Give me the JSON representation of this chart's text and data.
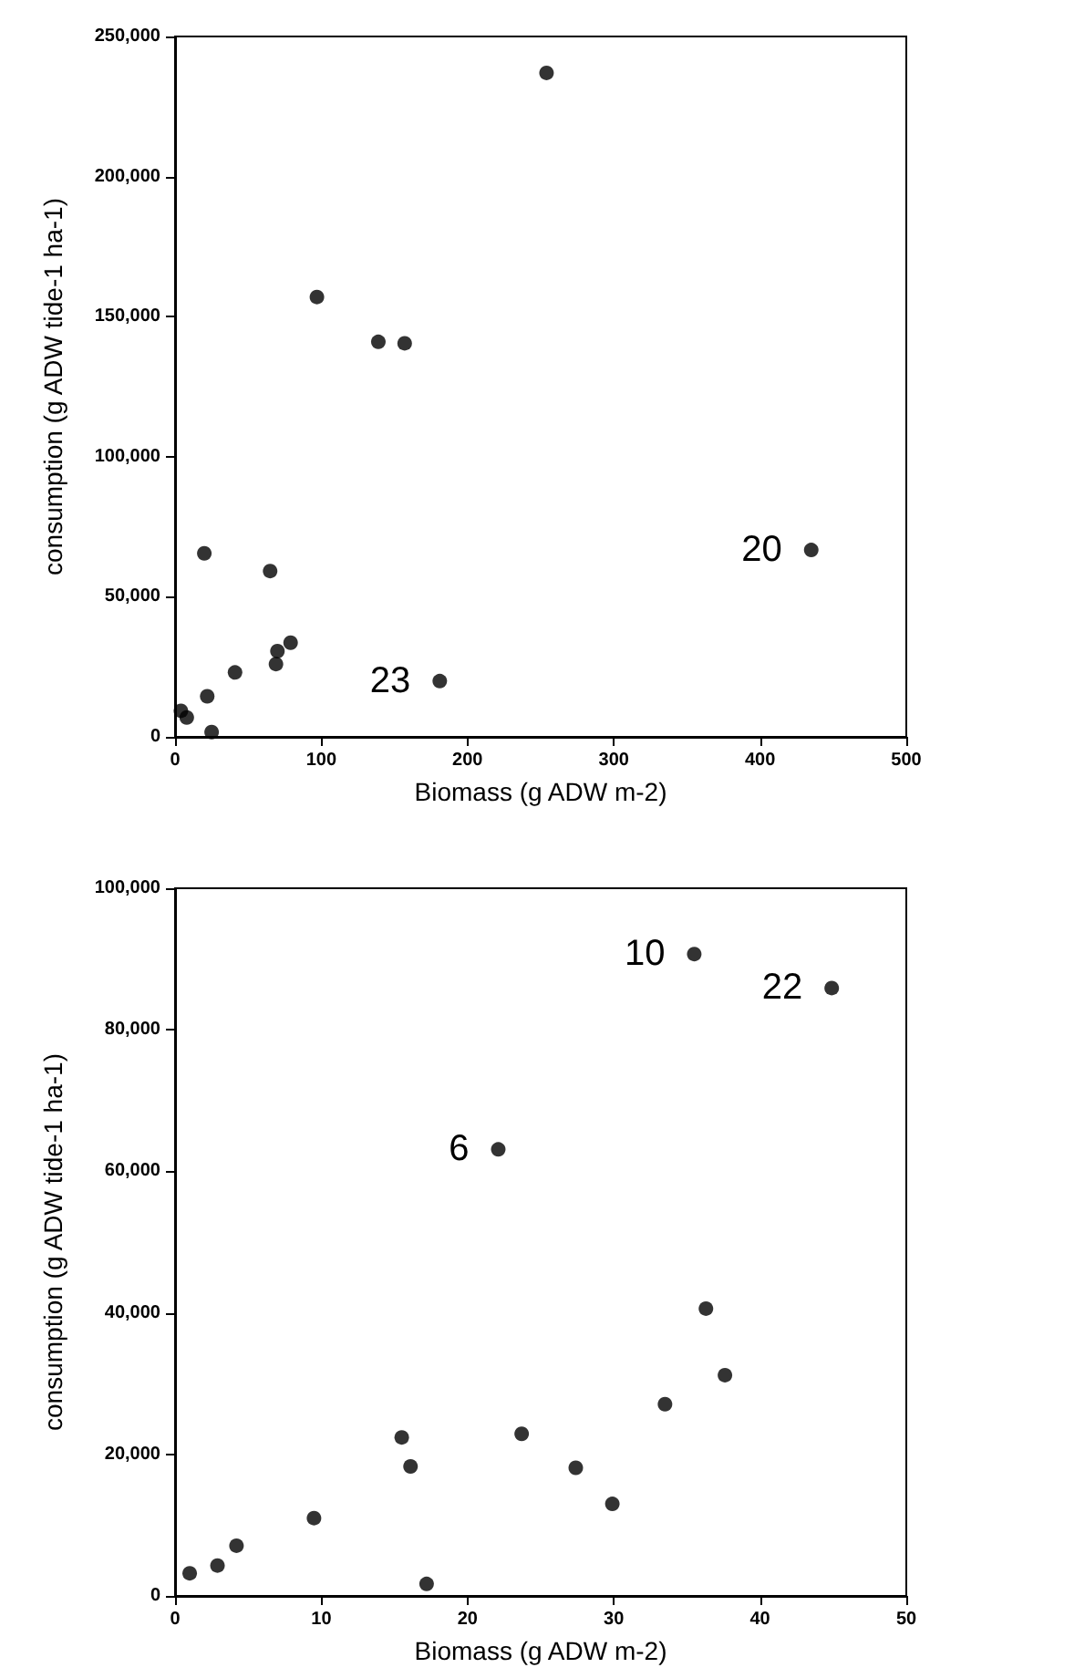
{
  "chart_data": [
    {
      "type": "scatter",
      "xlabel": "Biomass (g ADW m-2)",
      "ylabel": "consumption (g ADW tide-1 ha-1)",
      "marker": "circle",
      "grid": false,
      "xlim": [
        0,
        500
      ],
      "xticks": [
        0,
        100,
        200,
        300,
        400,
        500
      ],
      "ylim": [
        0,
        250000
      ],
      "yticks": [
        {
          "value": 0,
          "label": "0"
        },
        {
          "value": 50000,
          "label": "50,000"
        },
        {
          "value": 100000,
          "label": "100,000"
        },
        {
          "value": 150000,
          "label": "150,000"
        },
        {
          "value": 200000,
          "label": "200,000"
        },
        {
          "value": 250000,
          "label": "250,000"
        }
      ],
      "series": [
        {
          "color": "#000000",
          "x": [
            4,
            8,
            22,
            25,
            41,
            69,
            70,
            79,
            20,
            65,
            97,
            139,
            157,
            254,
            181,
            435
          ],
          "values": [
            9300,
            6900,
            14500,
            1700,
            23000,
            26000,
            30600,
            33600,
            65500,
            59200,
            157000,
            141000,
            140500,
            237000,
            19900,
            66700
          ]
        }
      ],
      "annotations": [
        {
          "text": "23",
          "x": 181,
          "y": 19900
        },
        {
          "text": "20",
          "x": 435,
          "y": 66700
        }
      ]
    },
    {
      "type": "scatter",
      "xlabel": "Biomass (g ADW m-2)",
      "ylabel": "consumption (g ADW tide-1 ha-1)",
      "marker": "circle",
      "grid": false,
      "xlim": [
        0,
        50
      ],
      "xticks": [
        0,
        10,
        20,
        30,
        40,
        50
      ],
      "ylim": [
        0,
        100000
      ],
      "yticks": [
        {
          "value": 0,
          "label": "0"
        },
        {
          "value": 20000,
          "label": "20,000"
        },
        {
          "value": 40000,
          "label": "40,000"
        },
        {
          "value": 60000,
          "label": "60,000"
        },
        {
          "value": 80000,
          "label": "80,000"
        },
        {
          "value": 100000,
          "label": "100,000"
        }
      ],
      "series": [
        {
          "color": "#000000",
          "x": [
            1.0,
            2.9,
            4.2,
            9.5,
            15.5,
            16.1,
            17.2,
            22.1,
            23.7,
            27.4,
            29.9,
            33.5,
            35.5,
            36.3,
            37.6,
            44.9
          ],
          "values": [
            3200,
            4300,
            7100,
            11000,
            22400,
            18300,
            1700,
            63100,
            22900,
            18100,
            13000,
            27100,
            90700,
            40600,
            31200,
            85900
          ]
        }
      ],
      "annotations": [
        {
          "text": "6",
          "x": 22.1,
          "y": 63100
        },
        {
          "text": "10",
          "x": 35.5,
          "y": 90700
        },
        {
          "text": "22",
          "x": 44.9,
          "y": 85900
        }
      ]
    }
  ]
}
